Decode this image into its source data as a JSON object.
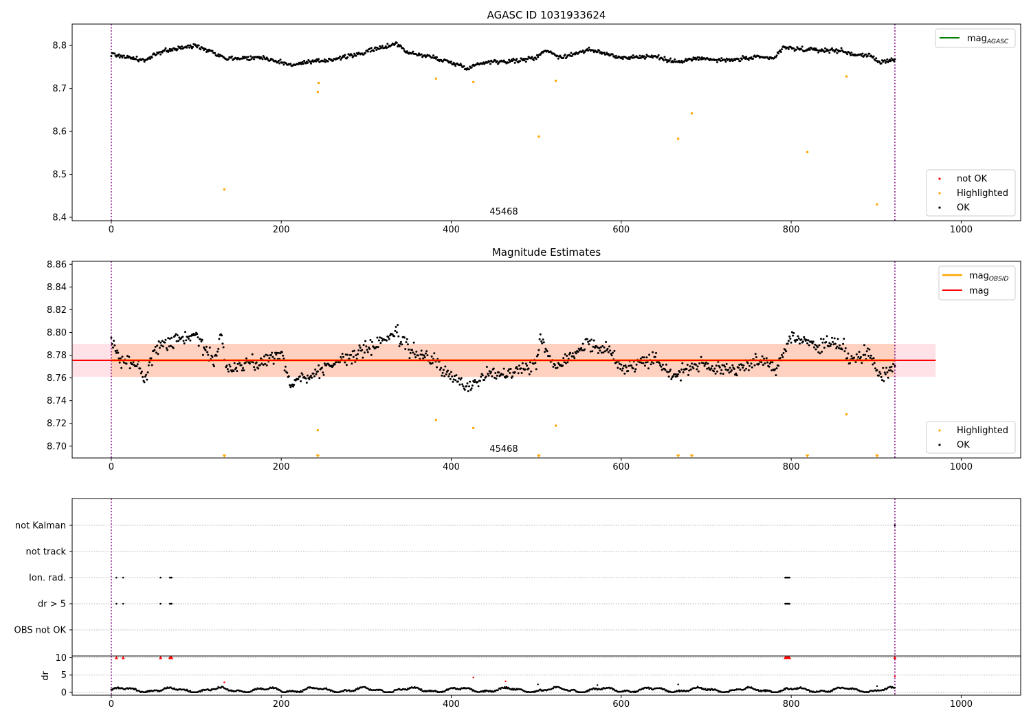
{
  "chart_data": [
    {
      "type": "scatter",
      "title": "AGASC ID 1031933624",
      "obsid_label": "45468",
      "xlim": [
        -46,
        1070
      ],
      "ylim": [
        8.392,
        8.85
      ],
      "xticks": [
        "0",
        "200",
        "400",
        "600",
        "800",
        "1000"
      ],
      "yticks": [
        "8.4",
        "8.5",
        "8.6",
        "8.7",
        "8.8"
      ],
      "ytick_values": [
        8.4,
        8.5,
        8.6,
        8.7,
        8.8
      ],
      "obs_boundaries": [
        0,
        922
      ],
      "legend_lines": [
        {
          "name": "mag",
          "sub": "AGASC",
          "color": "#008000"
        }
      ],
      "legend_points": [
        {
          "name": "not OK",
          "color": "#ff0000"
        },
        {
          "name": "Highlighted",
          "color": "#ffa500"
        },
        {
          "name": "OK",
          "color": "#000000"
        }
      ],
      "highlighted_points": [
        [
          133,
          8.465
        ],
        [
          243,
          8.692
        ],
        [
          244,
          8.713
        ],
        [
          382,
          8.723
        ],
        [
          426,
          8.715
        ],
        [
          503,
          8.588
        ],
        [
          523,
          8.718
        ],
        [
          667,
          8.583
        ],
        [
          683,
          8.642
        ],
        [
          819,
          8.552
        ],
        [
          865,
          8.728
        ],
        [
          901,
          8.43
        ]
      ],
      "ok_trend": [
        [
          0,
          8.78
        ],
        [
          40,
          8.765
        ],
        [
          60,
          8.787
        ],
        [
          100,
          8.8
        ],
        [
          120,
          8.785
        ],
        [
          135,
          8.77
        ],
        [
          180,
          8.772
        ],
        [
          210,
          8.755
        ],
        [
          250,
          8.765
        ],
        [
          280,
          8.775
        ],
        [
          300,
          8.785
        ],
        [
          335,
          8.805
        ],
        [
          350,
          8.783
        ],
        [
          380,
          8.772
        ],
        [
          400,
          8.76
        ],
        [
          420,
          8.748
        ],
        [
          440,
          8.762
        ],
        [
          480,
          8.765
        ],
        [
          500,
          8.772
        ],
        [
          510,
          8.79
        ],
        [
          530,
          8.772
        ],
        [
          560,
          8.79
        ],
        [
          580,
          8.782
        ],
        [
          600,
          8.772
        ],
        [
          640,
          8.775
        ],
        [
          660,
          8.762
        ],
        [
          690,
          8.77
        ],
        [
          720,
          8.765
        ],
        [
          760,
          8.772
        ],
        [
          780,
          8.77
        ],
        [
          790,
          8.795
        ],
        [
          820,
          8.79
        ],
        [
          860,
          8.788
        ],
        [
          870,
          8.78
        ],
        [
          890,
          8.778
        ],
        [
          905,
          8.76
        ],
        [
          922,
          8.77
        ]
      ]
    },
    {
      "type": "scatter",
      "title": "Magnitude Estimates",
      "obsid_label": "45468",
      "xlim": [
        -46,
        1070
      ],
      "ylim": [
        8.6896,
        8.8626
      ],
      "xticks": [
        "0",
        "200",
        "400",
        "600",
        "800",
        "1000"
      ],
      "yticks": [
        "8.70",
        "8.72",
        "8.74",
        "8.76",
        "8.78",
        "8.80",
        "8.82",
        "8.84",
        "8.86"
      ],
      "ytick_values": [
        8.7,
        8.72,
        8.74,
        8.76,
        8.78,
        8.8,
        8.82,
        8.84,
        8.86
      ],
      "obs_boundaries": [
        0,
        922
      ],
      "mag": 8.7755,
      "mag_obsid": 8.7755,
      "band_mag": [
        8.761,
        8.79,
        -46,
        970
      ],
      "band_obsid": [
        8.761,
        8.79,
        0,
        922
      ],
      "legend_lines": [
        {
          "name": "mag",
          "sub": "OBSID",
          "color": "#ffa500"
        },
        {
          "name": "mag",
          "sub": "",
          "color": "#ff0000"
        }
      ],
      "legend_points": [
        {
          "name": "Highlighted",
          "color": "#ffa500"
        },
        {
          "name": "OK",
          "color": "#000000"
        }
      ],
      "highlighted_points": [
        [
          243,
          8.714
        ],
        [
          382,
          8.723
        ],
        [
          426,
          8.716
        ],
        [
          523,
          8.718
        ],
        [
          865,
          8.728
        ]
      ],
      "highlighted_offscale": [
        133,
        243,
        503,
        667,
        683,
        819,
        901
      ],
      "ok_trend": [
        [
          0,
          8.792
        ],
        [
          10,
          8.775
        ],
        [
          30,
          8.772
        ],
        [
          40,
          8.76
        ],
        [
          50,
          8.785
        ],
        [
          60,
          8.79
        ],
        [
          100,
          8.798
        ],
        [
          110,
          8.785
        ],
        [
          120,
          8.775
        ],
        [
          130,
          8.798
        ],
        [
          135,
          8.768
        ],
        [
          180,
          8.775
        ],
        [
          200,
          8.782
        ],
        [
          210,
          8.755
        ],
        [
          250,
          8.768
        ],
        [
          270,
          8.775
        ],
        [
          300,
          8.785
        ],
        [
          335,
          8.8
        ],
        [
          350,
          8.785
        ],
        [
          380,
          8.775
        ],
        [
          400,
          8.76
        ],
        [
          420,
          8.752
        ],
        [
          440,
          8.762
        ],
        [
          480,
          8.768
        ],
        [
          500,
          8.772
        ],
        [
          505,
          8.798
        ],
        [
          520,
          8.77
        ],
        [
          560,
          8.79
        ],
        [
          585,
          8.785
        ],
        [
          600,
          8.768
        ],
        [
          640,
          8.778
        ],
        [
          660,
          8.762
        ],
        [
          690,
          8.772
        ],
        [
          720,
          8.765
        ],
        [
          760,
          8.775
        ],
        [
          785,
          8.77
        ],
        [
          800,
          8.796
        ],
        [
          830,
          8.788
        ],
        [
          860,
          8.79
        ],
        [
          870,
          8.775
        ],
        [
          890,
          8.782
        ],
        [
          905,
          8.76
        ],
        [
          922,
          8.773
        ]
      ]
    },
    {
      "type": "scatter",
      "title": "",
      "xlim": [
        -46,
        1070
      ],
      "xticks": [
        "0",
        "200",
        "400",
        "600",
        "800",
        "1000"
      ],
      "flag_labels": [
        "not Kalman",
        "not track",
        "Ion. rad.",
        "dr > 5",
        "OBS not OK"
      ],
      "obs_boundaries": [
        0,
        922
      ],
      "flag_points": {
        "Ion. rad.": [
          6,
          14,
          58,
          69,
          70,
          71,
          793,
          794,
          795,
          796,
          797,
          798
        ],
        "dr > 5": [
          6,
          14,
          58,
          69,
          70,
          71,
          793,
          794,
          795,
          796,
          797,
          798
        ],
        "not Kalman": [
          922
        ]
      },
      "dr_ylabel": "dr",
      "dr_yticks": [
        "0",
        "5",
        "10"
      ],
      "dr_ytick_values": [
        0,
        5,
        10
      ],
      "dr_ylim": [
        -0.8,
        10.5
      ],
      "dr_clipped_points": [
        6,
        14,
        58,
        69,
        70,
        71,
        793,
        794,
        795,
        796,
        797,
        798,
        922
      ],
      "dr_outliers": [
        [
          133,
          2.9
        ],
        [
          426,
          4.3
        ],
        [
          464,
          3.2
        ],
        [
          502,
          2.3
        ],
        [
          567,
          1.2
        ],
        [
          572,
          2.1
        ],
        [
          667,
          2.3
        ],
        [
          690,
          1.7
        ],
        [
          901,
          1.8
        ],
        [
          922,
          4.6
        ]
      ]
    }
  ]
}
